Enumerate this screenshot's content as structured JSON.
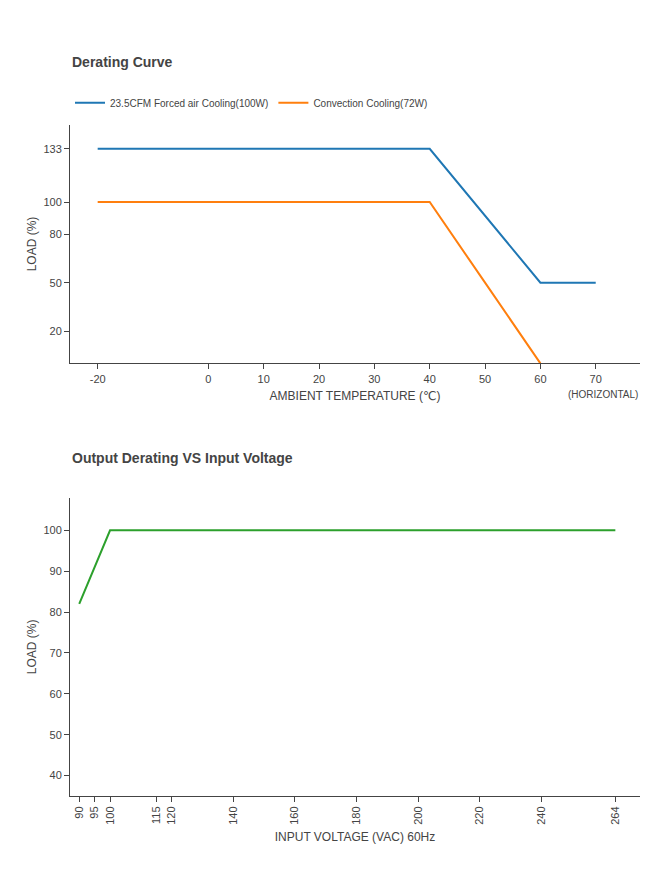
{
  "chart_data": [
    {
      "type": "line",
      "title": "Derating Curve",
      "x_label": "AMBIENT TEMPERATURE (℃)",
      "y_label": "LOAD (%)",
      "series": [
        {
          "name": "23.5CFM Forced air Cooling(100W)",
          "x": [
            -20,
            40,
            60,
            70
          ],
          "values": [
            133,
            133,
            50,
            50
          ]
        },
        {
          "name": "Convection Cooling(72W)",
          "x": [
            -20,
            40,
            50,
            60
          ],
          "values": [
            100,
            100,
            50,
            0
          ]
        }
      ],
      "xlim": [
        -25,
        78
      ],
      "ylim": [
        0,
        148
      ],
      "xticks": [
        -20,
        0,
        10,
        20,
        30,
        40,
        50,
        60,
        70
      ],
      "yticks": [
        20,
        50,
        80,
        100,
        133
      ],
      "grid": false,
      "legend": "top",
      "annotations": [
        "(HORIZONTAL)"
      ]
    },
    {
      "type": "line",
      "title": "Output Derating VS Input Voltage",
      "x_label": "INPUT VOLTAGE (VAC) 60Hz",
      "y_label": "LOAD (%)",
      "x": [
        90,
        100,
        115,
        264
      ],
      "values": [
        82,
        100,
        100,
        100
      ],
      "xlim": [
        87,
        272
      ],
      "ylim": [
        35,
        108
      ],
      "xticks": [
        90,
        95,
        100,
        115,
        120,
        140,
        160,
        180,
        200,
        220,
        240,
        264
      ],
      "yticks": [
        40,
        50,
        60,
        70,
        80,
        90,
        100
      ],
      "grid": false
    }
  ]
}
